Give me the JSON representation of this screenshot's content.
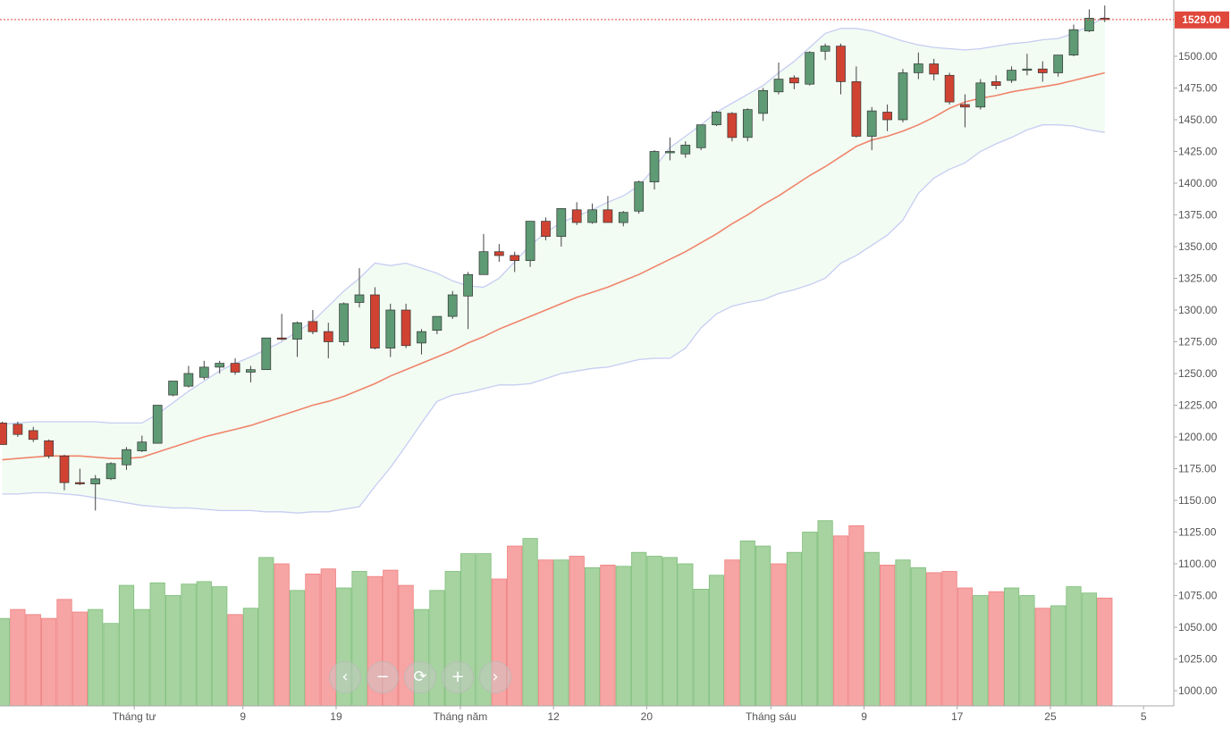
{
  "chart_data": {
    "type": "candlestick",
    "y_axis": {
      "range": [
        985,
        1545
      ],
      "ticks": [
        "1000.00",
        "1025.00",
        "1050.00",
        "1075.00",
        "1100.00",
        "1125.00",
        "1150.00",
        "1175.00",
        "1200.00",
        "1225.00",
        "1250.00",
        "1275.00",
        "1300.00",
        "1325.00",
        "1350.00",
        "1375.00",
        "1400.00",
        "1425.00",
        "1450.00",
        "1475.00",
        "1500.00"
      ]
    },
    "x_axis": {
      "labels": [
        {
          "index": 8.5,
          "text": "Tháng tư"
        },
        {
          "index": 15.5,
          "text": "9"
        },
        {
          "index": 21.5,
          "text": "19"
        },
        {
          "index": 29.5,
          "text": "Tháng năm"
        },
        {
          "index": 35.5,
          "text": "12"
        },
        {
          "index": 41.5,
          "text": "20"
        },
        {
          "index": 49.5,
          "text": "Tháng sáu"
        },
        {
          "index": 55.5,
          "text": "9"
        },
        {
          "index": 61.5,
          "text": "17"
        },
        {
          "index": 67.5,
          "text": "25"
        },
        {
          "index": 73.5,
          "text": "5"
        }
      ]
    },
    "last_price": {
      "value": 1529,
      "label": "1529.00",
      "color": "#e0483c"
    },
    "colors": {
      "up_body": "#5e9a74",
      "down_body": "#d04333",
      "wick": "#444444",
      "ma_line": "#f0846a",
      "band_line": "#c7cdf2",
      "band_fill": "#f2fcf3",
      "vol_up": "#a6d3a0",
      "vol_down": "#f7a4a4"
    },
    "candles": [
      [
        1211,
        1212,
        1194,
        1194
      ],
      [
        1210,
        1212,
        1200,
        1202
      ],
      [
        1205,
        1208,
        1196,
        1198
      ],
      [
        1197,
        1198,
        1183,
        1185
      ],
      [
        1185,
        1186,
        1158,
        1164
      ],
      [
        1164,
        1175,
        1162,
        1163
      ],
      [
        1163,
        1170,
        1142,
        1167
      ],
      [
        1167,
        1180,
        1166,
        1179
      ],
      [
        1178,
        1192,
        1174,
        1190
      ],
      [
        1189,
        1201,
        1188,
        1196
      ],
      [
        1195,
        1225,
        1195,
        1225
      ],
      [
        1233,
        1244,
        1232,
        1244
      ],
      [
        1240,
        1256,
        1239,
        1250
      ],
      [
        1247,
        1260,
        1245,
        1255
      ],
      [
        1255,
        1260,
        1250,
        1258
      ],
      [
        1258,
        1262,
        1249,
        1251
      ],
      [
        1251,
        1256,
        1243,
        1253
      ],
      [
        1253,
        1278,
        1253,
        1278
      ],
      [
        1278,
        1297,
        1276,
        1277
      ],
      [
        1277,
        1291,
        1263,
        1290
      ],
      [
        1291,
        1300,
        1281,
        1283
      ],
      [
        1283,
        1290,
        1262,
        1275
      ],
      [
        1275,
        1306,
        1272,
        1305
      ],
      [
        1306,
        1333,
        1302,
        1312
      ],
      [
        1312,
        1318,
        1269,
        1270
      ],
      [
        1270,
        1305,
        1263,
        1300
      ],
      [
        1300,
        1305,
        1270,
        1272
      ],
      [
        1274,
        1285,
        1265,
        1283
      ],
      [
        1284,
        1295,
        1281,
        1295
      ],
      [
        1295,
        1315,
        1293,
        1312
      ],
      [
        1311,
        1330,
        1285,
        1328
      ],
      [
        1328,
        1360,
        1328,
        1346
      ],
      [
        1346,
        1352,
        1338,
        1343
      ],
      [
        1343,
        1346,
        1330,
        1339
      ],
      [
        1339,
        1370,
        1334,
        1370
      ],
      [
        1370,
        1373,
        1355,
        1358
      ],
      [
        1358,
        1380,
        1350,
        1380
      ],
      [
        1379,
        1385,
        1367,
        1369
      ],
      [
        1369,
        1384,
        1368,
        1379
      ],
      [
        1379,
        1390,
        1370,
        1369
      ],
      [
        1369,
        1378,
        1366,
        1377
      ],
      [
        1378,
        1402,
        1376,
        1401
      ],
      [
        1401,
        1426,
        1395,
        1425
      ],
      [
        1425,
        1436,
        1418,
        1425
      ],
      [
        1423,
        1433,
        1420,
        1430
      ],
      [
        1428,
        1446,
        1426,
        1446
      ],
      [
        1446,
        1457,
        1445,
        1456
      ],
      [
        1455,
        1456,
        1433,
        1436
      ],
      [
        1436,
        1459,
        1433,
        1458
      ],
      [
        1455,
        1475,
        1449,
        1473
      ],
      [
        1472,
        1495,
        1470,
        1482
      ],
      [
        1483,
        1485,
        1474,
        1479
      ],
      [
        1478,
        1504,
        1477,
        1503
      ],
      [
        1504,
        1510,
        1497,
        1508
      ],
      [
        1508,
        1510,
        1470,
        1480
      ],
      [
        1480,
        1492,
        1436,
        1437
      ],
      [
        1437,
        1460,
        1426,
        1457
      ],
      [
        1456,
        1462,
        1441,
        1450
      ],
      [
        1450,
        1490,
        1448,
        1487
      ],
      [
        1487,
        1503,
        1482,
        1494
      ],
      [
        1494,
        1498,
        1481,
        1486
      ],
      [
        1485,
        1487,
        1462,
        1464
      ],
      [
        1462,
        1470,
        1444,
        1460
      ],
      [
        1460,
        1482,
        1458,
        1479
      ],
      [
        1480,
        1485,
        1474,
        1477
      ],
      [
        1481,
        1492,
        1479,
        1489
      ],
      [
        1489,
        1502,
        1485,
        1490
      ],
      [
        1490,
        1496,
        1480,
        1487
      ],
      [
        1487,
        1501,
        1484,
        1501
      ],
      [
        1501,
        1525,
        1500,
        1521
      ],
      [
        1520,
        1537,
        1519,
        1530
      ],
      [
        1530,
        1540,
        1527,
        1529
      ]
    ],
    "volume_direction": [
      "up",
      "down",
      "down",
      "down",
      "down",
      "down",
      "up",
      "up",
      "up",
      "up",
      "up",
      "up",
      "up",
      "up",
      "up",
      "down",
      "up",
      "up",
      "down",
      "up",
      "down",
      "down",
      "up",
      "up",
      "down",
      "down",
      "down",
      "up",
      "up",
      "up",
      "up",
      "up",
      "down",
      "down",
      "up",
      "down",
      "up",
      "down",
      "up",
      "down",
      "up",
      "up",
      "up",
      "up",
      "up",
      "up",
      "up",
      "down",
      "up",
      "up",
      "down",
      "up",
      "up",
      "up",
      "down",
      "down",
      "up",
      "down",
      "up",
      "up",
      "down",
      "down",
      "down",
      "up",
      "down",
      "up",
      "up",
      "down",
      "up",
      "up",
      "up",
      "down"
    ],
    "volume": [
      1057,
      1064,
      1060,
      1057,
      1072,
      1062,
      1064,
      1053,
      1083,
      1064,
      1085,
      1075,
      1084,
      1086,
      1082,
      1060,
      1065,
      1105,
      1100,
      1079,
      1092,
      1096,
      1081,
      1094,
      1090,
      1095,
      1083,
      1064,
      1079,
      1094,
      1108,
      1108,
      1088,
      1114,
      1120,
      1103,
      1103,
      1106,
      1097,
      1099,
      1098,
      1109,
      1106,
      1105,
      1100,
      1080,
      1091,
      1103,
      1118,
      1114,
      1100,
      1109,
      1125,
      1134,
      1122,
      1130,
      1109,
      1099,
      1103,
      1097,
      1093,
      1094,
      1081,
      1075,
      1078,
      1081,
      1075,
      1065,
      1067,
      1082,
      1077,
      1073
    ],
    "moving_average": [
      1182,
      1183,
      1184,
      1185,
      1185,
      1185,
      1184,
      1183,
      1183,
      1184,
      1188,
      1192,
      1196,
      1200,
      1203,
      1206,
      1209,
      1213,
      1217,
      1221,
      1225,
      1228,
      1232,
      1237,
      1242,
      1248,
      1253,
      1258,
      1263,
      1268,
      1274,
      1279,
      1285,
      1290,
      1295,
      1300,
      1305,
      1310,
      1314,
      1318,
      1323,
      1328,
      1334,
      1340,
      1346,
      1353,
      1360,
      1368,
      1375,
      1383,
      1390,
      1398,
      1406,
      1413,
      1421,
      1429,
      1434,
      1437,
      1441,
      1446,
      1452,
      1459,
      1464,
      1467,
      1469,
      1472,
      1474,
      1476,
      1478,
      1481,
      1484,
      1487
    ],
    "band_upper": [
      1210,
      1211,
      1212,
      1212,
      1212,
      1212,
      1212,
      1211,
      1211,
      1211,
      1218,
      1227,
      1236,
      1244,
      1252,
      1258,
      1263,
      1269,
      1275,
      1283,
      1291,
      1303,
      1315,
      1325,
      1337,
      1335,
      1337,
      1333,
      1329,
      1323,
      1319,
      1318,
      1325,
      1338,
      1351,
      1361,
      1369,
      1374,
      1379,
      1385,
      1390,
      1398,
      1412,
      1428,
      1437,
      1446,
      1456,
      1463,
      1470,
      1477,
      1487,
      1496,
      1507,
      1518,
      1522,
      1522,
      1520,
      1516,
      1512,
      1509,
      1507,
      1506,
      1505,
      1506,
      1508,
      1510,
      1511,
      1513,
      1514,
      1518,
      1524,
      1531
    ],
    "band_lower": [
      1155,
      1155,
      1156,
      1156,
      1155,
      1154,
      1152,
      1150,
      1148,
      1146,
      1145,
      1144,
      1144,
      1143,
      1142,
      1142,
      1142,
      1141,
      1141,
      1140,
      1141,
      1141,
      1143,
      1145,
      1161,
      1176,
      1193,
      1211,
      1228,
      1233,
      1235,
      1238,
      1241,
      1241,
      1242,
      1246,
      1250,
      1252,
      1254,
      1255,
      1258,
      1261,
      1262,
      1262,
      1270,
      1286,
      1297,
      1303,
      1306,
      1308,
      1313,
      1316,
      1320,
      1325,
      1337,
      1343,
      1351,
      1359,
      1371,
      1392,
      1404,
      1411,
      1416,
      1425,
      1431,
      1436,
      1442,
      1446,
      1446,
      1445,
      1442,
      1440
    ]
  },
  "controls": {
    "zoom_prev": "‹",
    "zoom_out": "−",
    "zoom_reset": "⟳",
    "zoom_in": "+",
    "zoom_next": "›"
  }
}
